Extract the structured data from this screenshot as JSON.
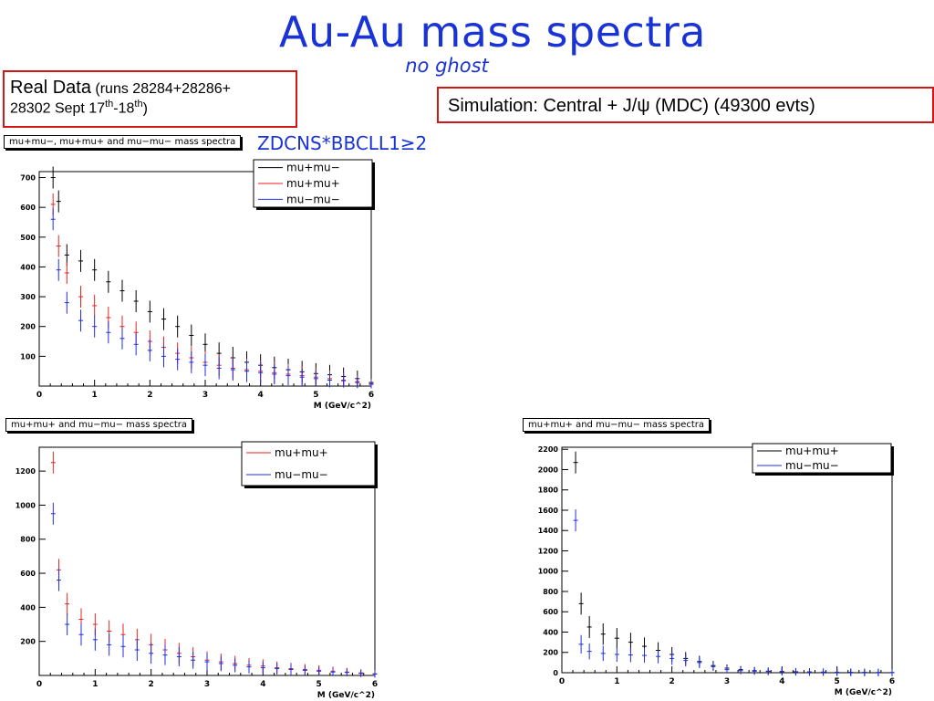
{
  "page": {
    "title": "Au-Au mass spectra",
    "subtitle": "no ghost",
    "real_data": {
      "label": "Real Data",
      "runs_line1": "(runs 28284+28286+",
      "runs_line2": "28302 Sept 17",
      "sup1": "th",
      "dash": "-18",
      "sup2": "th",
      "close": ")"
    },
    "simulation": "Simulation: Central + J/ψ (MDC)  (49300 evts)",
    "cut_label": "ZDCNS*BBCLL1≥2"
  },
  "colors": {
    "black": "#000000",
    "red": "#e8231f",
    "blue": "#1f2ee8",
    "accent": "#1a33d6",
    "frame": "#d01818"
  },
  "chart_data": [
    {
      "type": "scatter",
      "title": "mu+mu−, mu+mu+ and mu−mu− mass spectra",
      "xlabel": "M (GeV/c^2)",
      "xlim": [
        0,
        6
      ],
      "ylim": [
        0,
        720
      ],
      "x_ticks": [
        "0",
        "1",
        "2",
        "3",
        "4",
        "5",
        "6"
      ],
      "y_ticks": [
        "100",
        "200",
        "300",
        "400",
        "500",
        "600",
        "700"
      ],
      "legend_position": "top-right",
      "series": [
        {
          "name": "mu+mu−",
          "color": "#000000",
          "x": [
            0.25,
            0.35,
            0.5,
            0.75,
            1,
            1.25,
            1.5,
            1.75,
            2,
            2.25,
            2.5,
            2.75,
            3,
            3.25,
            3.5,
            3.75,
            4,
            4.25,
            4.5,
            4.75,
            5,
            5.25,
            5.5,
            5.75,
            6
          ],
          "y": [
            700,
            620,
            440,
            420,
            390,
            350,
            320,
            285,
            250,
            225,
            200,
            170,
            140,
            110,
            95,
            80,
            70,
            62,
            55,
            48,
            42,
            38,
            32,
            25,
            12
          ]
        },
        {
          "name": "mu+mu+",
          "color": "#e8231f",
          "x": [
            0.25,
            0.35,
            0.5,
            0.75,
            1,
            1.25,
            1.5,
            1.75,
            2,
            2.25,
            2.5,
            2.75,
            3,
            3.25,
            3.5,
            3.75,
            4,
            4.25,
            4.5,
            4.75,
            5,
            5.25,
            5.5,
            5.75,
            6
          ],
          "y": [
            610,
            470,
            380,
            300,
            270,
            230,
            200,
            180,
            150,
            130,
            110,
            95,
            80,
            70,
            60,
            55,
            50,
            45,
            40,
            35,
            30,
            25,
            20,
            15,
            8
          ]
        },
        {
          "name": "mu−mu−",
          "color": "#1f2ee8",
          "x": [
            0.25,
            0.35,
            0.5,
            0.75,
            1,
            1.25,
            1.5,
            1.75,
            2,
            2.25,
            2.5,
            2.75,
            3,
            3.25,
            3.5,
            3.75,
            4,
            4.25,
            4.5,
            4.75,
            5,
            5.25,
            5.5,
            5.75,
            6
          ],
          "y": [
            560,
            390,
            280,
            220,
            200,
            180,
            160,
            140,
            120,
            100,
            90,
            80,
            70,
            60,
            55,
            50,
            45,
            40,
            35,
            30,
            25,
            20,
            18,
            12,
            6
          ]
        }
      ]
    },
    {
      "type": "scatter",
      "title": "mu+mu+ and mu−mu− mass spectra",
      "xlabel": "M (GeV/c^2)",
      "xlim": [
        0,
        6
      ],
      "ylim": [
        0,
        1340
      ],
      "x_ticks": [
        "0",
        "1",
        "2",
        "3",
        "4",
        "5",
        "6"
      ],
      "y_ticks": [
        "200",
        "400",
        "600",
        "800",
        "1000",
        "1200"
      ],
      "legend_position": "top-right",
      "series": [
        {
          "name": "mu+mu+",
          "color": "#e8231f",
          "x": [
            0.25,
            0.35,
            0.5,
            0.75,
            1,
            1.25,
            1.5,
            1.75,
            2,
            2.25,
            2.5,
            2.75,
            3,
            3.25,
            3.5,
            3.75,
            4,
            4.25,
            4.5,
            4.75,
            5,
            5.25,
            5.5,
            5.75,
            6
          ],
          "y": [
            1250,
            620,
            420,
            330,
            300,
            260,
            240,
            210,
            180,
            150,
            130,
            110,
            90,
            80,
            70,
            60,
            55,
            45,
            40,
            35,
            30,
            25,
            20,
            15,
            10
          ]
        },
        {
          "name": "mu−mu−",
          "color": "#1f2ee8",
          "x": [
            0.25,
            0.35,
            0.5,
            0.75,
            1,
            1.25,
            1.5,
            1.75,
            2,
            2.25,
            2.5,
            2.75,
            3,
            3.25,
            3.5,
            3.75,
            4,
            4.25,
            4.5,
            4.75,
            5,
            5.25,
            5.5,
            5.75,
            6
          ],
          "y": [
            950,
            560,
            300,
            240,
            210,
            180,
            170,
            150,
            130,
            120,
            110,
            90,
            80,
            70,
            60,
            50,
            45,
            40,
            35,
            30,
            25,
            20,
            18,
            12,
            8
          ]
        }
      ]
    },
    {
      "type": "scatter",
      "title": "mu+mu+ and mu−mu− mass spectra",
      "xlabel": "M (GeV/c^2)",
      "xlim": [
        0,
        6
      ],
      "ylim": [
        0,
        2220
      ],
      "x_ticks": [
        "0",
        "1",
        "2",
        "3",
        "4",
        "5",
        "6"
      ],
      "y_ticks": [
        "0",
        "200",
        "400",
        "600",
        "800",
        "1000",
        "1200",
        "1400",
        "1600",
        "1800",
        "2000",
        "2200"
      ],
      "legend_position": "top-right",
      "series": [
        {
          "name": "mu+mu+",
          "color": "#000000",
          "x": [
            0.25,
            0.35,
            0.5,
            0.75,
            1,
            1.25,
            1.5,
            1.75,
            2,
            2.25,
            2.5,
            2.75,
            3,
            3.25,
            3.5,
            3.75,
            4,
            4.25,
            4.5,
            4.75,
            5,
            5.25,
            5.5,
            5.75,
            6
          ],
          "y": [
            2070,
            680,
            450,
            380,
            340,
            300,
            260,
            220,
            180,
            140,
            110,
            70,
            45,
            30,
            20,
            15,
            12,
            10,
            8,
            6,
            5,
            4,
            3,
            2,
            2
          ]
        },
        {
          "name": "mu−mu−",
          "color": "#1f2ee8",
          "x": [
            0.25,
            0.35,
            0.5,
            0.75,
            1,
            1.25,
            1.5,
            1.75,
            2,
            2.25,
            2.5,
            2.75,
            3,
            3.25,
            3.5,
            3.75,
            4,
            4.25,
            4.5,
            4.75,
            5,
            5.25,
            5.5,
            5.75,
            6
          ],
          "y": [
            1500,
            280,
            210,
            190,
            180,
            175,
            170,
            160,
            140,
            120,
            100,
            60,
            30,
            20,
            15,
            12,
            10,
            8,
            6,
            5,
            4,
            3,
            2,
            2,
            1
          ]
        }
      ]
    }
  ]
}
